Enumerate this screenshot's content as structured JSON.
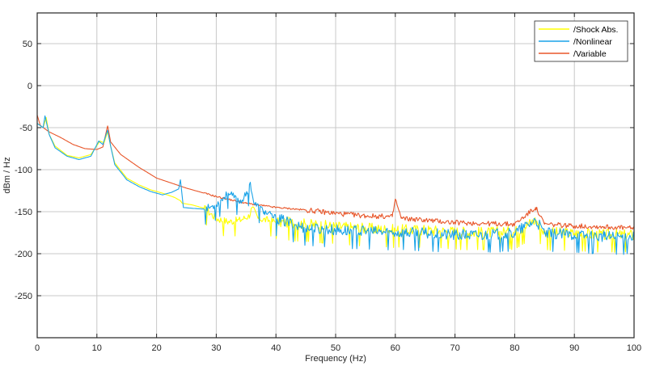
{
  "chart_data": {
    "type": "line",
    "title": "",
    "xlabel": "Frequency (Hz)",
    "ylabel": "dBm / Hz",
    "xlim": [
      0,
      100
    ],
    "ylim": [
      -300,
      86
    ],
    "xticks": [
      0,
      10,
      20,
      30,
      40,
      50,
      60,
      70,
      80,
      90,
      100
    ],
    "yticks": [
      50,
      0,
      -50,
      -100,
      -150,
      -200,
      -250
    ],
    "grid": true,
    "legend_position": "upper right",
    "series": [
      {
        "name": "/Shock Abs.",
        "color": "#ffff00",
        "x": [
          0,
          1,
          1.5,
          2,
          3,
          5,
          7,
          9,
          10.5,
          11.2,
          11.8,
          12.3,
          13,
          15,
          17,
          19,
          21,
          23,
          24,
          24.3,
          26,
          28,
          30,
          32,
          34,
          35.5,
          36,
          37,
          40,
          45,
          50,
          55,
          60,
          65,
          70,
          75,
          80,
          83.5,
          85,
          90,
          95,
          100
        ],
        "y": [
          -45,
          -50,
          -38,
          -58,
          -72,
          -83,
          -86,
          -82,
          -66,
          -68,
          -55,
          -72,
          -92,
          -110,
          -118,
          -124,
          -128,
          -133,
          -137,
          -140,
          -142,
          -146,
          -158,
          -162,
          -160,
          -155,
          -145,
          -158,
          -162,
          -165,
          -168,
          -170,
          -172,
          -172,
          -174,
          -175,
          -174,
          -160,
          -175,
          -176,
          -178,
          -178
        ]
      },
      {
        "name": "/Nonlinear",
        "color": "#1aa3e8",
        "x": [
          0,
          1,
          1.3,
          2,
          3,
          5,
          7,
          9,
          10.3,
          11,
          11.8,
          12.3,
          13,
          15,
          17,
          19,
          21,
          22.5,
          23.7,
          24,
          24.5,
          26,
          28,
          30,
          32,
          34,
          35.3,
          35.7,
          36.3,
          38,
          40,
          45,
          50,
          55,
          60,
          65,
          70,
          75,
          80,
          83.5,
          85,
          90,
          95,
          100
        ],
        "y": [
          -45,
          -50,
          -36,
          -58,
          -74,
          -84,
          -88,
          -84,
          -66,
          -70,
          -53,
          -72,
          -94,
          -112,
          -120,
          -126,
          -130,
          -127,
          -123,
          -112,
          -145,
          -146,
          -147,
          -142,
          -128,
          -138,
          -128,
          -115,
          -140,
          -150,
          -158,
          -170,
          -172,
          -174,
          -175,
          -176,
          -178,
          -178,
          -176,
          -160,
          -176,
          -178,
          -180,
          -180
        ]
      },
      {
        "name": "/Variable",
        "color": "#e8562a",
        "x": [
          0,
          0.5,
          1,
          2,
          4,
          6,
          8,
          10,
          11,
          11.8,
          12.3,
          14,
          17,
          20,
          25,
          30,
          35,
          40,
          45,
          50,
          55,
          59.5,
          60,
          61,
          65,
          70,
          75,
          80,
          83.5,
          85,
          90,
          95,
          100
        ],
        "y": [
          -35,
          -47,
          -50,
          -55,
          -62,
          -70,
          -75,
          -76,
          -73,
          -48,
          -67,
          -82,
          -97,
          -110,
          -122,
          -132,
          -140,
          -145,
          -148,
          -152,
          -155,
          -156,
          -135,
          -158,
          -160,
          -163,
          -164,
          -165,
          -145,
          -165,
          -167,
          -168,
          -170
        ]
      }
    ]
  },
  "axes": {
    "xlabel": "Frequency (Hz)",
    "ylabel": "dBm / Hz",
    "xtick_labels": [
      "0",
      "10",
      "20",
      "30",
      "40",
      "50",
      "60",
      "70",
      "80",
      "90",
      "100"
    ],
    "ytick_labels": [
      "50",
      "0",
      "-50",
      "-100",
      "-150",
      "-200",
      "-250"
    ]
  },
  "legend": {
    "items": [
      {
        "label": "/Shock Abs.",
        "color": "#ffff00"
      },
      {
        "label": "/Nonlinear",
        "color": "#1aa3e8"
      },
      {
        "label": "/Variable",
        "color": "#e8562a"
      }
    ]
  }
}
